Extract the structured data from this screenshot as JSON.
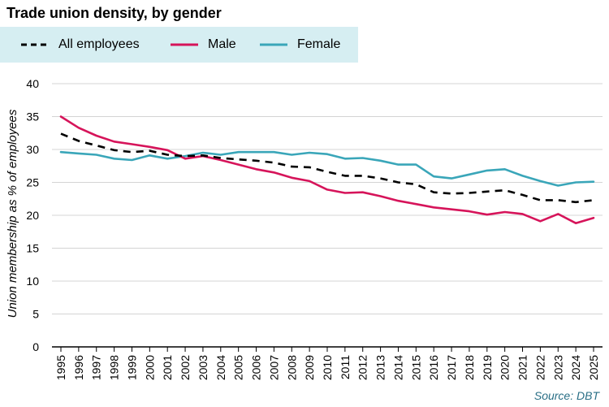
{
  "chart_data": {
    "type": "line",
    "title": "Trade union density, by gender",
    "ylabel": "Union membership as % of employees",
    "xlabel": "",
    "ylim": [
      0,
      40
    ],
    "yticks": [
      0,
      5,
      10,
      15,
      20,
      25,
      30,
      35,
      40
    ],
    "grid": "horizontal",
    "legend_position": "top-left",
    "x": [
      "1995",
      "1996",
      "1997",
      "1998",
      "1999",
      "2000",
      "2001",
      "2002",
      "2003",
      "2004",
      "2005",
      "2006",
      "2007",
      "2008",
      "2009",
      "2010",
      "2011",
      "2012",
      "2013",
      "2014",
      "2015",
      "2016",
      "2017",
      "2018",
      "2019",
      "2020",
      "2021",
      "2022",
      "2023",
      "2024",
      "2025"
    ],
    "series": [
      {
        "name": "All employees",
        "color": "#000000",
        "style": "dashed",
        "values": [
          32.4,
          31.3,
          30.6,
          29.9,
          29.6,
          29.8,
          29.2,
          29.0,
          29.1,
          28.7,
          28.5,
          28.3,
          28.0,
          27.4,
          27.3,
          26.6,
          26.0,
          26.0,
          25.6,
          25.0,
          24.7,
          23.5,
          23.3,
          23.4,
          23.6,
          23.8,
          23.1,
          22.3,
          22.3,
          22.0,
          22.3
        ]
      },
      {
        "name": "Male",
        "color": "#d6145a",
        "style": "solid",
        "values": [
          35.0,
          33.3,
          32.1,
          31.2,
          30.8,
          30.4,
          29.9,
          28.6,
          29.0,
          28.4,
          27.7,
          27.0,
          26.5,
          25.7,
          25.2,
          23.9,
          23.4,
          23.5,
          22.9,
          22.2,
          21.7,
          21.2,
          20.9,
          20.6,
          20.1,
          20.5,
          20.2,
          19.1,
          20.2,
          18.8,
          19.6
        ]
      },
      {
        "name": "Female",
        "color": "#3aa6b9",
        "style": "solid",
        "values": [
          29.6,
          29.4,
          29.2,
          28.6,
          28.4,
          29.1,
          28.6,
          29.0,
          29.5,
          29.2,
          29.6,
          29.6,
          29.6,
          29.2,
          29.5,
          29.3,
          28.6,
          28.7,
          28.3,
          27.7,
          27.7,
          25.9,
          25.6,
          26.2,
          26.8,
          27.0,
          26.0,
          25.2,
          24.5,
          25.0,
          25.1
        ]
      }
    ],
    "source": "Source: DBT"
  }
}
